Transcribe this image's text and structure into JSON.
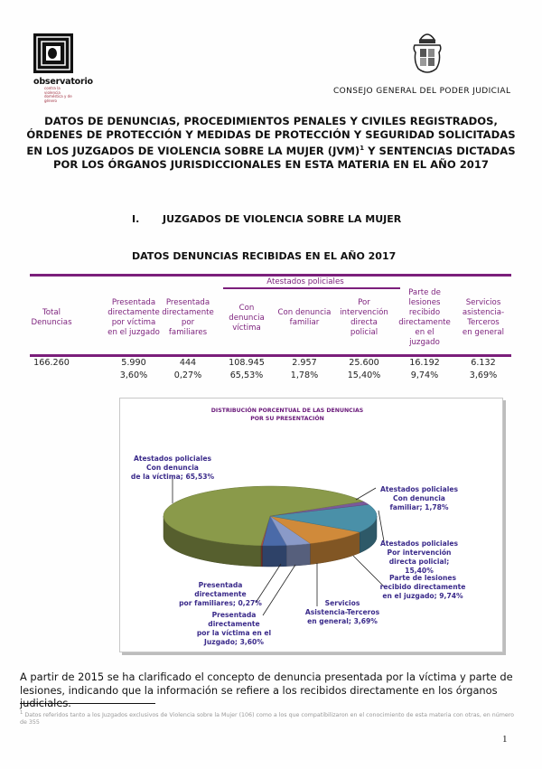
{
  "header": {
    "left_logo": {
      "name": "observatorio",
      "subtitle": "contra la violencia doméstica y de género"
    },
    "right_org": "CONSEJO GENERAL DEL PODER JUDICIAL"
  },
  "title_lines": [
    "DATOS DE DENUNCIAS, PROCEDIMIENTOS PENALES Y CIVILES REGISTRADOS,",
    "ÓRDENES DE PROTECCIÓN Y MEDIDAS DE PROTECCIÓN Y SEGURIDAD SOLICITADAS",
    "EN LOS JUZGADOS DE VIOLENCIA SOBRE LA MUJER (JVM)",
    "Y SENTENCIAS DICTADAS",
    "POR LOS ÓRGANOS JURISDICCIONALES EN ESTA MATERIA EN EL AÑO 2017"
  ],
  "footnote_mark": "1",
  "section": {
    "number": "I.",
    "title": "JUZGADOS DE VIOLENCIA SOBRE LA MUJER"
  },
  "table_title": "DATOS DENUNCIAS RECIBIDAS EN EL AÑO 2017",
  "table": {
    "group_header": "Atestados policiales",
    "columns": [
      [
        "Total",
        "Denuncias"
      ],
      [
        "Presentada",
        "directamente",
        "por víctima",
        "en el juzgado"
      ],
      [
        "Presentada",
        "directamente",
        "por",
        "familiares"
      ],
      [
        "Con",
        "denuncia",
        "víctima"
      ],
      [
        "Con denuncia",
        "familiar"
      ],
      [
        "Por",
        "intervención",
        "directa",
        "policial"
      ],
      [
        "Parte de",
        "lesiones",
        "recibido",
        "directamente",
        "en el",
        "juzgado"
      ],
      [
        "Servicios",
        "asistencia-",
        "Terceros",
        "en general"
      ]
    ],
    "values": [
      "166.260",
      "5.990",
      "444",
      "108.945",
      "2.957",
      "25.600",
      "16.192",
      "6.132"
    ],
    "percents": [
      "",
      "3,60%",
      "0,27%",
      "65,53%",
      "1,78%",
      "15,40%",
      "9,74%",
      "3,69%"
    ]
  },
  "chart_data": {
    "type": "pie",
    "title": [
      "DISTRIBUCIÓN PORCENTUAL DE LAS DENUNCIAS",
      "POR SU PRESENTACIÓN"
    ],
    "slices": [
      {
        "label": [
          "Atestados policiales",
          "Con denuncia",
          "de la víctima; 65,53%"
        ],
        "value": 65.53,
        "color": "#8a9a4a"
      },
      {
        "label": [
          "Atestados policiales",
          "Con denuncia",
          "familiar; 1,78%"
        ],
        "value": 1.78,
        "color": "#7a5a9a"
      },
      {
        "label": [
          "Atestados policiales",
          "Por intervención",
          "directa policial;",
          "15,40%"
        ],
        "value": 15.4,
        "color": "#4a90a8"
      },
      {
        "label": [
          "Parte de lesiones",
          "recibido directamente",
          "en el juzgado; 9,74%"
        ],
        "value": 9.74,
        "color": "#d08a3a"
      },
      {
        "label": [
          "Servicios",
          "Asistencia-Terceros",
          "en general; 3,69%"
        ],
        "value": 3.69,
        "color": "#8a9ac8"
      },
      {
        "label": [
          "Presentada",
          "directamente",
          "por la víctima en el",
          "Juzgado; 3,60%"
        ],
        "value": 3.6,
        "color": "#4a6aa8"
      },
      {
        "label": [
          "Presentada",
          "directamente",
          "por familiares; 0,27%"
        ],
        "value": 0.27,
        "color": "#b04a3a"
      }
    ],
    "legend": "none",
    "style": "3d"
  },
  "paragraph": "A partir de 2015 se ha clarificado el concepto de denuncia presentada por la víctima y parte de lesiones, indicando que la información se refiere a los recibidos directamente en los órganos judiciales.",
  "footnote": "Datos referidos tanto a los Juzgados exclusivos de Violencia sobre la Mujer (106) como a los que compatibilizaron en el conocimiento de esta materia con otras, en número de 355",
  "page_number": "1"
}
